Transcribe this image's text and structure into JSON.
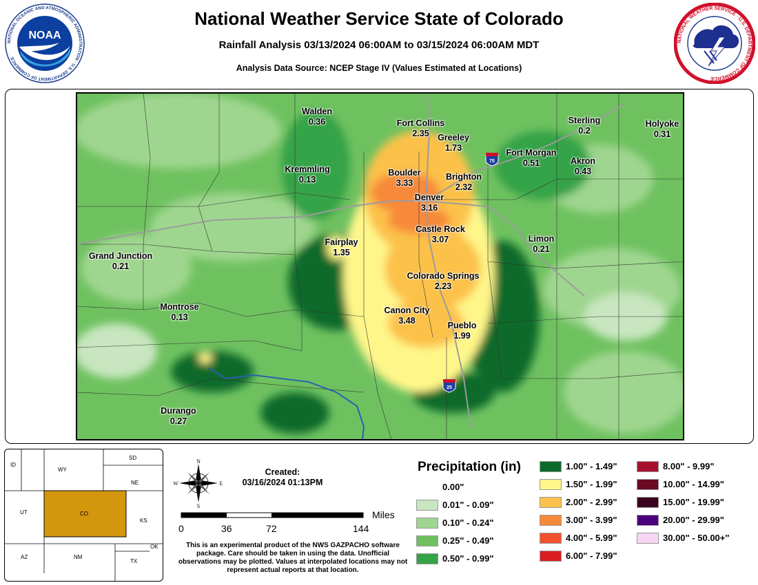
{
  "header": {
    "title": "National Weather Service State of Colorado",
    "subtitle": "Rainfall Analysis 03/13/2024 06:00AM to 03/15/2024 06:00AM MDT",
    "source": "Analysis Data Source: NCEP Stage IV (Values Estimated at Locations)"
  },
  "logos": {
    "noaa_text": "NOAA",
    "noaa_ring": "NATIONAL OCEANIC AND ATMOSPHERIC ADMINISTRATION · U.S. DEPARTMENT OF COMMERCE",
    "nws_ring": "NATIONAL WEATHER SERVICE · U.S. DEPARTMENT OF COMMERCE"
  },
  "highways": {
    "i70": "70",
    "i25": "25"
  },
  "cities": [
    {
      "name": "Walden",
      "value": "0.36"
    },
    {
      "name": "Fort Collins",
      "value": "2.35"
    },
    {
      "name": "Greeley",
      "value": "1.73"
    },
    {
      "name": "Sterling",
      "value": "0.2"
    },
    {
      "name": "Holyoke",
      "value": "0.31"
    },
    {
      "name": "Fort Morgan",
      "value": "0.51"
    },
    {
      "name": "Akron",
      "value": "0.43"
    },
    {
      "name": "Kremmling",
      "value": "0.13"
    },
    {
      "name": "Boulder",
      "value": "3.33"
    },
    {
      "name": "Brighton",
      "value": "2.32"
    },
    {
      "name": "Denver",
      "value": "3.16"
    },
    {
      "name": "Castle Rock",
      "value": "3.07"
    },
    {
      "name": "Limon",
      "value": "0.21"
    },
    {
      "name": "Fairplay",
      "value": "1.35"
    },
    {
      "name": "Grand Junction",
      "value": "0.21"
    },
    {
      "name": "Colorado Springs",
      "value": "2.23"
    },
    {
      "name": "Montrose",
      "value": "0.13"
    },
    {
      "name": "Canon City",
      "value": "3.48"
    },
    {
      "name": "Pueblo",
      "value": "1.99"
    },
    {
      "name": "Durango",
      "value": "0.27"
    }
  ],
  "inset": {
    "states": [
      "ID",
      "WY",
      "SD",
      "NE",
      "UT",
      "CO",
      "KS",
      "AZ",
      "NM",
      "OK",
      "TX"
    ],
    "highlight_color": "#d4960c"
  },
  "footer": {
    "created_label": "Created:",
    "created_date": "03/16/2024 01:13PM",
    "compass": {
      "n": "N",
      "s": "S",
      "e": "E",
      "w": "W"
    },
    "scale_unit": "Miles",
    "scale_ticks": [
      "0",
      "36",
      "72",
      "144"
    ],
    "disclaimer": "This is an experimental product of the NWS GAZPACHO software package. Care should be taken in using the data. Unofficial observations may be plotted. Values at interpolated locations may not represent actual reports at that location."
  },
  "legend": {
    "title": "Precipitation (in)",
    "items": [
      {
        "label": "0.00\"",
        "color": "#ffffff"
      },
      {
        "label": "0.01\" - 0.09\"",
        "color": "#c8e6c0"
      },
      {
        "label": "0.10\" - 0.24\"",
        "color": "#9fd68f"
      },
      {
        "label": "0.25\" - 0.49\"",
        "color": "#6fc160"
      },
      {
        "label": "0.50\" - 0.99\"",
        "color": "#35a347"
      },
      {
        "label": "1.00\" - 1.49\"",
        "color": "#0b6b2c"
      },
      {
        "label": "1.50\" - 1.99\"",
        "color": "#fff68a"
      },
      {
        "label": "2.00\" - 2.99\"",
        "color": "#fcc14a"
      },
      {
        "label": "3.00\" - 3.99\"",
        "color": "#f7893a"
      },
      {
        "label": "4.00\" - 5.99\"",
        "color": "#f2502e"
      },
      {
        "label": "6.00\" - 7.99\"",
        "color": "#d91e23"
      },
      {
        "label": "8.00\" - 9.99\"",
        "color": "#a8112e"
      },
      {
        "label": "10.00\" - 14.99\"",
        "color": "#6b0a24"
      },
      {
        "label": "15.00\" - 19.99\"",
        "color": "#3a0020"
      },
      {
        "label": "20.00\" - 29.99\"",
        "color": "#4b007f"
      },
      {
        "label": "30.00\" - 50.00+\"",
        "color": "#f7d6f4"
      }
    ]
  }
}
